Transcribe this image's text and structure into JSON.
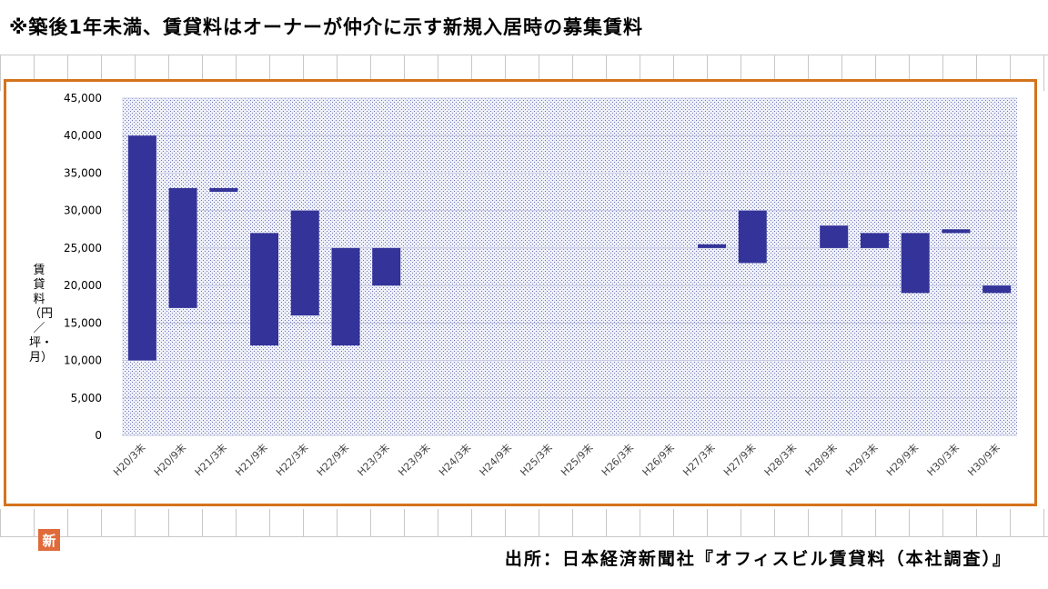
{
  "header": {
    "note": "※築後1年未満、賃貸料はオーナーが仲介に示す新規入居時の募集賃料"
  },
  "footer": {
    "source": "出所：日本経済新聞社『オフィスビル賃貸料（本社調査）』"
  },
  "badge": {
    "text": "新"
  },
  "colors": {
    "bar": "#333399",
    "frame": "#d4731c",
    "plot_bg": "#dfe1f0"
  },
  "chart_data": {
    "type": "bar",
    "subtype": "floating-range",
    "ylabel": "賃貸料（円／坪・月）",
    "ylim": [
      0,
      45000
    ],
    "yticks": [
      "45,000",
      "40,000",
      "35,000",
      "30,000",
      "25,000",
      "20,000",
      "15,000",
      "10,000",
      "5,000",
      "0"
    ],
    "ytick_values": [
      45000,
      40000,
      35000,
      30000,
      25000,
      20000,
      15000,
      10000,
      5000,
      0
    ],
    "categories": [
      "H20/3末",
      "H20/9末",
      "H21/3末",
      "H21/9末",
      "H22/3末",
      "H22/9末",
      "H23/3末",
      "H23/9末",
      "H24/3末",
      "H24/9末",
      "H25/3末",
      "H25/9末",
      "H26/3末",
      "H26/9末",
      "H27/3末",
      "H27/9末",
      "H28/3末",
      "H28/9末",
      "H29/3末",
      "H29/9末",
      "H30/3末",
      "H30/9末"
    ],
    "low": [
      10000,
      17000,
      32500,
      12000,
      16000,
      12000,
      20000,
      null,
      null,
      null,
      null,
      null,
      null,
      null,
      25000,
      23000,
      null,
      25000,
      25000,
      19000,
      27000,
      19000
    ],
    "high": [
      40000,
      33000,
      33000,
      27000,
      30000,
      25000,
      25000,
      null,
      null,
      null,
      null,
      null,
      null,
      null,
      25500,
      30000,
      null,
      28000,
      27000,
      27000,
      27500,
      20000
    ],
    "grid": true,
    "legend": "none"
  }
}
